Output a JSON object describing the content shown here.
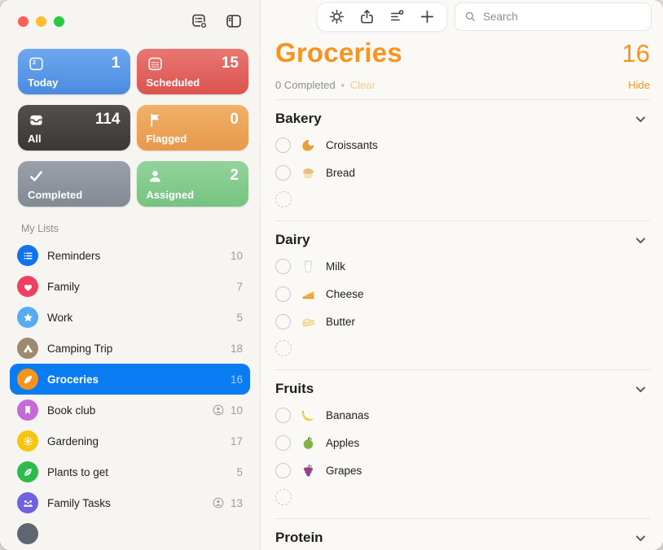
{
  "window": {
    "controls": {
      "close_color": "#FF5F57",
      "minimize_color": "#FEBC2E",
      "zoom_color": "#28C840"
    }
  },
  "sidebar": {
    "toolbar_icons": [
      "new-list",
      "toggle-sidebar"
    ],
    "smart_lists": [
      {
        "label": "Today",
        "count": "1",
        "icon": "calendar-today",
        "c1": "#6FA7EF",
        "c2": "#4A8BE0"
      },
      {
        "label": "Scheduled",
        "count": "15",
        "icon": "calendar-grid",
        "c1": "#E87672",
        "c2": "#DC534F"
      },
      {
        "label": "All",
        "count": "114",
        "icon": "tray",
        "c1": "#53504C",
        "c2": "#3B3935"
      },
      {
        "label": "Flagged",
        "count": "0",
        "icon": "flag",
        "c1": "#F0B169",
        "c2": "#E8984B"
      },
      {
        "label": "Completed",
        "count": "",
        "icon": "checkmark",
        "c1": "#9AA0A9",
        "c2": "#828A93"
      },
      {
        "label": "Assigned",
        "count": "2",
        "icon": "person",
        "c1": "#93D39B",
        "c2": "#76C381"
      }
    ],
    "my_lists_label": "My Lists",
    "selected_color": "#0A7CF2",
    "lists": [
      {
        "name": "Reminders",
        "count": "10",
        "icon": "bullet-list",
        "color": "#1273F0",
        "shared": false,
        "selected": false
      },
      {
        "name": "Family",
        "count": "7",
        "icon": "heart",
        "color": "#EF3F63",
        "shared": false,
        "selected": false
      },
      {
        "name": "Work",
        "count": "5",
        "icon": "star",
        "color": "#55ACF1",
        "shared": false,
        "selected": false
      },
      {
        "name": "Camping Trip",
        "count": "18",
        "icon": "tent",
        "color": "#9B8A6E",
        "shared": false,
        "selected": false
      },
      {
        "name": "Groceries",
        "count": "16",
        "icon": "feather",
        "color": "#F7941D",
        "shared": false,
        "selected": true
      },
      {
        "name": "Book club",
        "count": "10",
        "icon": "bookmark",
        "color": "#C46BD9",
        "shared": true,
        "selected": false
      },
      {
        "name": "Gardening",
        "count": "17",
        "icon": "sun",
        "color": "#F6C513",
        "shared": false,
        "selected": false
      },
      {
        "name": "Plants to get",
        "count": "5",
        "icon": "leaf",
        "color": "#2EBB4E",
        "shared": false,
        "selected": false
      },
      {
        "name": "Family Tasks",
        "count": "13",
        "icon": "family",
        "color": "#6E62E1",
        "shared": true,
        "selected": false
      },
      {
        "name": "",
        "count": "",
        "icon": "generic",
        "color": "#5E6670",
        "shared": false,
        "selected": false,
        "partial": true
      }
    ]
  },
  "toolbar": {
    "icons": [
      "gear",
      "share",
      "list-add",
      "plus"
    ],
    "search_placeholder": "Search"
  },
  "main": {
    "title": "Groceries",
    "count": "16",
    "accent_color": "#F7941D",
    "subheader": {
      "completed_text": "0 Completed",
      "separator": "•",
      "clear_label": "Clear",
      "hide_label": "Hide"
    },
    "sections": [
      {
        "name": "Bakery",
        "placeholder": true,
        "items": [
          {
            "title": "Croissants",
            "emoji": "🥐",
            "icon": "croissant"
          },
          {
            "title": "Bread",
            "emoji": "🍞",
            "icon": "bread"
          }
        ]
      },
      {
        "name": "Dairy",
        "placeholder": true,
        "items": [
          {
            "title": "Milk",
            "emoji": "🥛",
            "icon": "milk"
          },
          {
            "title": "Cheese",
            "emoji": "🧀",
            "icon": "cheese"
          },
          {
            "title": "Butter",
            "emoji": "🧈",
            "icon": "butter"
          }
        ]
      },
      {
        "name": "Fruits",
        "placeholder": true,
        "items": [
          {
            "title": "Bananas",
            "emoji": "🍌",
            "icon": "banana"
          },
          {
            "title": "Apples",
            "emoji": "🍏",
            "icon": "apple"
          },
          {
            "title": "Grapes",
            "emoji": "🍇",
            "icon": "grapes"
          }
        ]
      },
      {
        "name": "Protein",
        "placeholder": false,
        "items": []
      }
    ]
  }
}
